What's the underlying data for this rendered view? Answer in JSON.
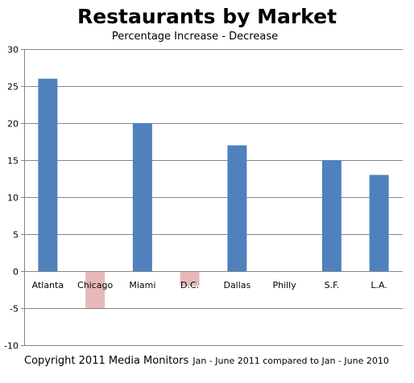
{
  "chart_data": {
    "type": "bar",
    "title": "Restaurants by Market",
    "subtitle": "Percentage Increase - Decrease",
    "categories": [
      "Atlanta",
      "Chicago",
      "Miami",
      "D.C.",
      "Dallas",
      "Philly",
      "S.F.",
      "L.A."
    ],
    "values": [
      26,
      -5,
      20,
      -2,
      17,
      0,
      15,
      13
    ],
    "ylim": [
      -10,
      30
    ],
    "yticks": [
      30,
      25,
      20,
      15,
      10,
      5,
      0,
      -5,
      -10
    ],
    "grid": true,
    "colors": {
      "positive": "#4f81bd",
      "negative": "#e6b9b8"
    }
  },
  "footer": {
    "copyright": "Copyright 2011 Media Monitors",
    "note": "Jan - June 2011 compared to Jan - June 2010"
  }
}
